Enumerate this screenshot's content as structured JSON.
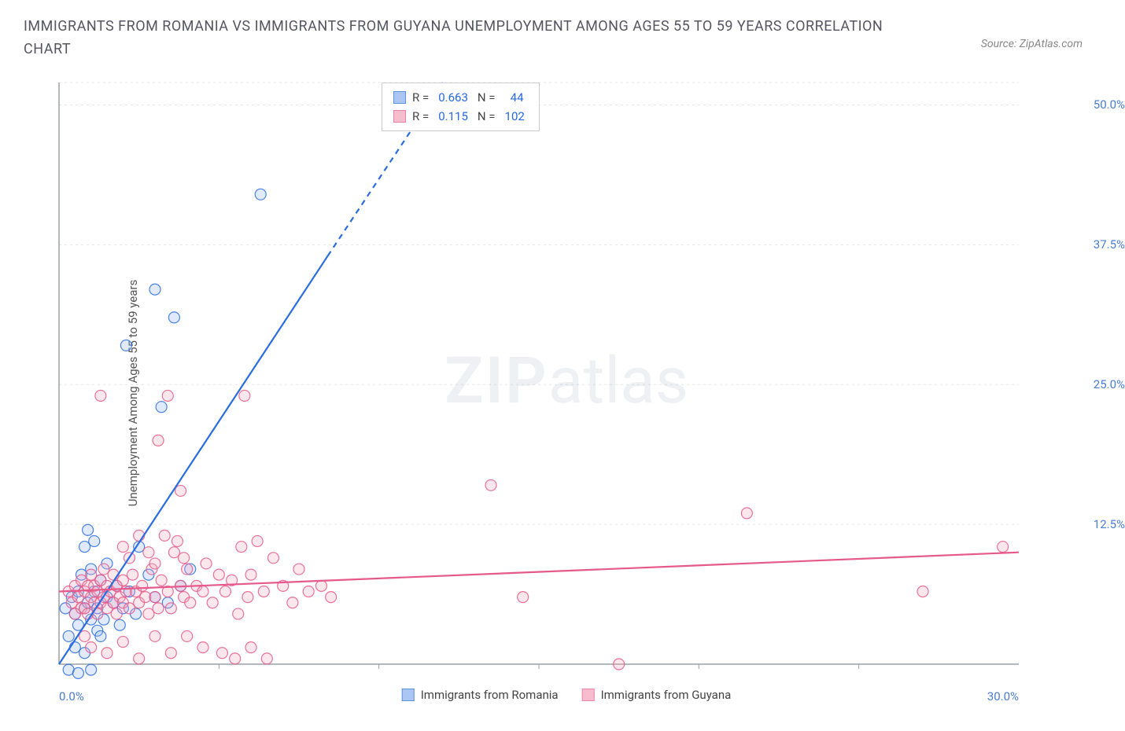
{
  "title": "IMMIGRANTS FROM ROMANIA VS IMMIGRANTS FROM GUYANA UNEMPLOYMENT AMONG AGES 55 TO 59 YEARS CORRELATION CHART",
  "source": "Source: ZipAtlas.com",
  "watermark_a": "ZIP",
  "watermark_b": "atlas",
  "y_axis_label": "Unemployment Among Ages 55 to 59 years",
  "chart": {
    "type": "scatter",
    "xlim": [
      0,
      30
    ],
    "ylim": [
      0,
      52
    ],
    "x_ticks": [
      0.0,
      30.0
    ],
    "x_tick_labels": [
      "0.0%",
      "30.0%"
    ],
    "x_minor_ticks": [
      5,
      10,
      15,
      20,
      25
    ],
    "y_ticks": [
      12.5,
      25.0,
      37.5,
      50.0
    ],
    "y_tick_labels": [
      "12.5%",
      "25.0%",
      "37.5%",
      "50.0%"
    ],
    "gridline_color": "#e6e6e6",
    "gridline_dash": "3,4",
    "axis_color": "#9aa0a6",
    "background": "#ffffff",
    "marker_radius": 7,
    "marker_stroke_width": 1.2,
    "marker_fill_opacity": 0.28,
    "line_width": 2.2,
    "series": [
      {
        "name": "Immigrants from Romania",
        "color": "#2a6de0",
        "fill": "#8fb3f0",
        "R": "0.663",
        "N": "44",
        "trend": {
          "x1": 0,
          "y1": 0,
          "x2": 12,
          "y2": 52,
          "dash_after_x": 8.4,
          "dash_after_y": 36.5
        },
        "points": [
          [
            0.2,
            5.0
          ],
          [
            0.3,
            2.5
          ],
          [
            0.4,
            6.0
          ],
          [
            0.5,
            4.5
          ],
          [
            0.5,
            1.5
          ],
          [
            0.6,
            6.5
          ],
          [
            0.6,
            3.5
          ],
          [
            0.7,
            8.0
          ],
          [
            0.8,
            5.0
          ],
          [
            0.8,
            10.5
          ],
          [
            0.8,
            1.0
          ],
          [
            0.9,
            12.0
          ],
          [
            0.9,
            5.5
          ],
          [
            1.0,
            4.0
          ],
          [
            1.0,
            8.5
          ],
          [
            1.1,
            11.0
          ],
          [
            1.1,
            6.5
          ],
          [
            1.2,
            3.0
          ],
          [
            1.2,
            5.0
          ],
          [
            1.3,
            7.5
          ],
          [
            1.3,
            2.5
          ],
          [
            1.4,
            4.0
          ],
          [
            1.5,
            6.0
          ],
          [
            1.5,
            9.0
          ],
          [
            1.7,
            5.5
          ],
          [
            1.8,
            7.0
          ],
          [
            1.9,
            3.5
          ],
          [
            2.0,
            5.0
          ],
          [
            2.2,
            6.5
          ],
          [
            2.4,
            4.5
          ],
          [
            2.5,
            10.5
          ],
          [
            2.8,
            8.0
          ],
          [
            3.0,
            6.0
          ],
          [
            3.2,
            23.0
          ],
          [
            3.4,
            5.5
          ],
          [
            3.8,
            7.0
          ],
          [
            4.1,
            8.5
          ],
          [
            2.1,
            28.5
          ],
          [
            3.0,
            33.5
          ],
          [
            3.6,
            31.0
          ],
          [
            6.3,
            42.0
          ],
          [
            0.3,
            -0.5
          ],
          [
            1.0,
            -0.5
          ],
          [
            0.6,
            -0.8
          ]
        ]
      },
      {
        "name": "Immigrants from Guyana",
        "color": "#e55a8a",
        "fill": "#f5a8c0",
        "R": "0.115",
        "N": "102",
        "trend": {
          "x1": 0,
          "y1": 6.5,
          "x2": 30,
          "y2": 10.0
        },
        "points": [
          [
            0.3,
            6.5
          ],
          [
            0.4,
            5.5
          ],
          [
            0.5,
            7.0
          ],
          [
            0.5,
            4.5
          ],
          [
            0.6,
            6.0
          ],
          [
            0.7,
            5.0
          ],
          [
            0.7,
            7.5
          ],
          [
            0.8,
            6.5
          ],
          [
            0.8,
            5.0
          ],
          [
            0.9,
            7.0
          ],
          [
            0.9,
            4.5
          ],
          [
            1.0,
            6.0
          ],
          [
            1.0,
            8.0
          ],
          [
            1.1,
            5.5
          ],
          [
            1.1,
            7.0
          ],
          [
            1.2,
            6.5
          ],
          [
            1.2,
            4.5
          ],
          [
            1.3,
            5.5
          ],
          [
            1.3,
            7.5
          ],
          [
            1.4,
            6.0
          ],
          [
            1.4,
            8.5
          ],
          [
            1.5,
            5.0
          ],
          [
            1.5,
            7.0
          ],
          [
            1.6,
            6.5
          ],
          [
            1.7,
            5.5
          ],
          [
            1.7,
            8.0
          ],
          [
            1.8,
            7.0
          ],
          [
            1.8,
            4.5
          ],
          [
            1.9,
            6.0
          ],
          [
            2.0,
            5.5
          ],
          [
            2.0,
            7.5
          ],
          [
            2.1,
            6.5
          ],
          [
            2.2,
            5.0
          ],
          [
            2.3,
            8.0
          ],
          [
            2.4,
            6.5
          ],
          [
            2.5,
            5.5
          ],
          [
            2.6,
            7.0
          ],
          [
            2.7,
            6.0
          ],
          [
            2.8,
            4.5
          ],
          [
            2.9,
            8.5
          ],
          [
            3.0,
            6.0
          ],
          [
            3.1,
            5.0
          ],
          [
            3.2,
            7.5
          ],
          [
            3.4,
            6.5
          ],
          [
            3.5,
            5.0
          ],
          [
            3.7,
            11.0
          ],
          [
            3.8,
            7.0
          ],
          [
            3.9,
            6.0
          ],
          [
            4.0,
            8.5
          ],
          [
            4.1,
            5.5
          ],
          [
            4.3,
            7.0
          ],
          [
            4.5,
            6.5
          ],
          [
            4.6,
            9.0
          ],
          [
            4.8,
            5.5
          ],
          [
            5.0,
            8.0
          ],
          [
            5.2,
            6.5
          ],
          [
            5.4,
            7.5
          ],
          [
            5.6,
            4.5
          ],
          [
            5.7,
            10.5
          ],
          [
            5.9,
            6.0
          ],
          [
            6.0,
            8.0
          ],
          [
            6.2,
            11.0
          ],
          [
            6.4,
            6.5
          ],
          [
            6.7,
            9.5
          ],
          [
            7.0,
            7.0
          ],
          [
            7.3,
            5.5
          ],
          [
            7.5,
            8.5
          ],
          [
            7.8,
            6.5
          ],
          [
            1.3,
            24.0
          ],
          [
            3.4,
            24.0
          ],
          [
            5.8,
            24.0
          ],
          [
            3.1,
            20.0
          ],
          [
            3.8,
            15.5
          ],
          [
            5.1,
            1.0
          ],
          [
            5.5,
            0.5
          ],
          [
            6.0,
            1.5
          ],
          [
            6.5,
            0.5
          ],
          [
            4.0,
            2.5
          ],
          [
            4.5,
            1.5
          ],
          [
            1.5,
            1.0
          ],
          [
            2.0,
            2.0
          ],
          [
            2.5,
            0.5
          ],
          [
            3.0,
            2.5
          ],
          [
            3.5,
            1.0
          ],
          [
            0.8,
            2.5
          ],
          [
            1.0,
            1.5
          ],
          [
            8.2,
            7.0
          ],
          [
            8.5,
            6.0
          ],
          [
            13.5,
            16.0
          ],
          [
            14.5,
            6.0
          ],
          [
            17.5,
            0.0
          ],
          [
            21.5,
            13.5
          ],
          [
            27.0,
            6.5
          ],
          [
            29.5,
            10.5
          ],
          [
            2.0,
            10.5
          ],
          [
            2.2,
            9.5
          ],
          [
            2.5,
            11.5
          ],
          [
            2.8,
            10.0
          ],
          [
            3.0,
            9.0
          ],
          [
            3.3,
            11.5
          ],
          [
            3.6,
            10.0
          ],
          [
            3.9,
            9.5
          ]
        ]
      }
    ]
  },
  "legend": {
    "r_label": "R =",
    "n_label": "N ="
  }
}
